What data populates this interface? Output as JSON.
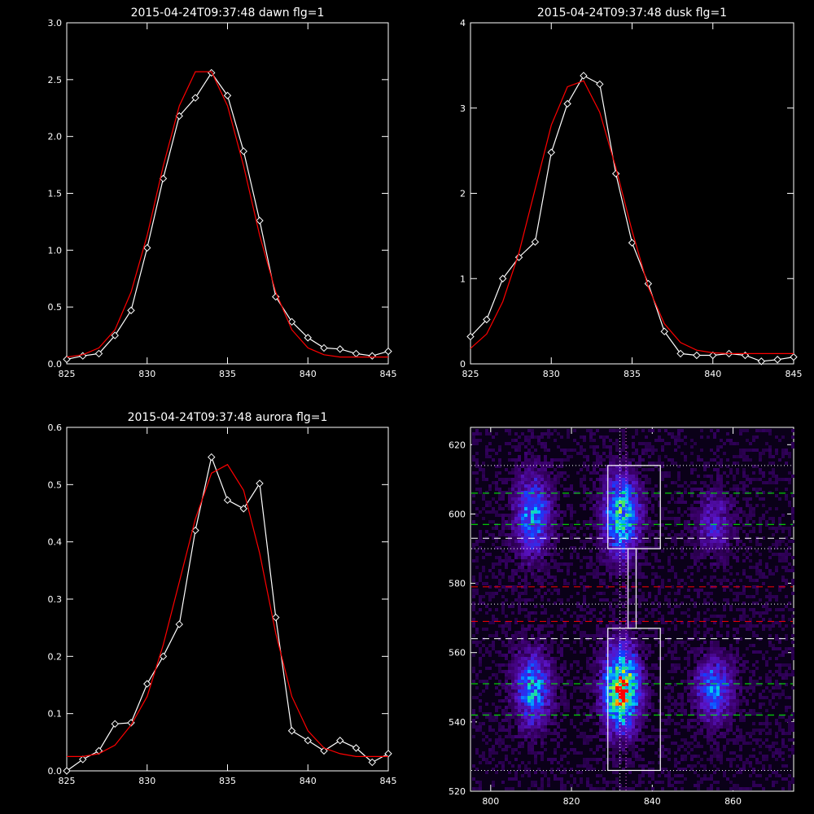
{
  "chart_data": [
    {
      "type": "line",
      "title": "2015-04-24T09:37:48 dawn flg=1",
      "xlim": [
        825,
        845
      ],
      "ylim": [
        0,
        3.0
      ],
      "xticks": [
        "825",
        "830",
        "835",
        "840",
        "845"
      ],
      "yticks": [
        "0.0",
        "0.5",
        "1.0",
        "1.5",
        "2.0",
        "2.5",
        "3.0"
      ],
      "series": [
        {
          "color": "#ffffff",
          "markers": true,
          "x": [
            825,
            826,
            827,
            828,
            829,
            830,
            831,
            832,
            833,
            834,
            835,
            836,
            837,
            838,
            839,
            840,
            841,
            842,
            843,
            844,
            845
          ],
          "y": [
            0.04,
            0.07,
            0.09,
            0.25,
            0.47,
            1.02,
            1.63,
            2.18,
            2.34,
            2.56,
            2.36,
            1.87,
            1.26,
            0.59,
            0.37,
            0.23,
            0.14,
            0.13,
            0.09,
            0.07,
            0.11
          ]
        },
        {
          "color": "#ff0000",
          "markers": false,
          "x": [
            825,
            826,
            827,
            828,
            829,
            830,
            831,
            832,
            833,
            834,
            835,
            836,
            837,
            838,
            839,
            840,
            841,
            842,
            843,
            844,
            845
          ],
          "y": [
            0.06,
            0.08,
            0.14,
            0.3,
            0.63,
            1.13,
            1.74,
            2.27,
            2.57,
            2.57,
            2.27,
            1.74,
            1.13,
            0.63,
            0.3,
            0.14,
            0.08,
            0.06,
            0.06,
            0.06,
            0.06
          ]
        }
      ]
    },
    {
      "type": "line",
      "title": "2015-04-24T09:37:48 dusk flg=1",
      "xlim": [
        825,
        845
      ],
      "ylim": [
        0,
        4
      ],
      "xticks": [
        "825",
        "830",
        "835",
        "840",
        "845"
      ],
      "yticks": [
        "0",
        "1",
        "2",
        "3",
        "4"
      ],
      "series": [
        {
          "color": "#ffffff",
          "markers": true,
          "x": [
            825,
            826,
            827,
            828,
            829,
            830,
            831,
            832,
            833,
            834,
            835,
            836,
            837,
            838,
            839,
            840,
            841,
            842,
            843,
            844,
            845
          ],
          "y": [
            0.32,
            0.52,
            1.0,
            1.25,
            1.43,
            2.48,
            3.05,
            3.38,
            3.28,
            2.23,
            1.42,
            0.94,
            0.38,
            0.12,
            0.1,
            0.1,
            0.12,
            0.1,
            0.03,
            0.05,
            0.08
          ]
        },
        {
          "color": "#ff0000",
          "markers": false,
          "x": [
            825,
            826,
            827,
            828,
            829,
            830,
            831,
            832,
            833,
            834,
            835,
            836,
            837,
            838,
            839,
            840,
            841,
            842,
            843,
            844,
            845
          ],
          "y": [
            0.18,
            0.35,
            0.73,
            1.3,
            2.05,
            2.8,
            3.25,
            3.32,
            2.95,
            2.3,
            1.56,
            0.9,
            0.47,
            0.25,
            0.16,
            0.13,
            0.12,
            0.12,
            0.12,
            0.12,
            0.12
          ]
        }
      ]
    },
    {
      "type": "line",
      "title": "2015-04-24T09:37:48 aurora flg=1",
      "xlim": [
        825,
        845
      ],
      "ylim": [
        0,
        0.6
      ],
      "xticks": [
        "825",
        "830",
        "835",
        "840",
        "845"
      ],
      "yticks": [
        "0.0",
        "0.1",
        "0.2",
        "0.3",
        "0.4",
        "0.5",
        "0.6"
      ],
      "series": [
        {
          "color": "#ffffff",
          "markers": true,
          "x": [
            825,
            826,
            827,
            828,
            829,
            830,
            831,
            832,
            833,
            834,
            835,
            836,
            837,
            838,
            839,
            840,
            841,
            842,
            843,
            844,
            845
          ],
          "y": [
            0.0,
            0.02,
            0.035,
            0.082,
            0.084,
            0.152,
            0.2,
            0.256,
            0.42,
            0.548,
            0.473,
            0.458,
            0.502,
            0.268,
            0.07,
            0.053,
            0.035,
            0.053,
            0.04,
            0.015,
            0.03
          ]
        },
        {
          "color": "#ff0000",
          "markers": false,
          "x": [
            825,
            826,
            827,
            828,
            829,
            830,
            831,
            832,
            833,
            834,
            835,
            836,
            837,
            838,
            839,
            840,
            841,
            842,
            843,
            844,
            845
          ],
          "y": [
            0.025,
            0.025,
            0.03,
            0.045,
            0.08,
            0.13,
            0.22,
            0.33,
            0.44,
            0.52,
            0.535,
            0.49,
            0.38,
            0.24,
            0.13,
            0.07,
            0.04,
            0.03,
            0.025,
            0.025,
            0.025
          ]
        }
      ]
    },
    {
      "type": "heatmap",
      "title": "",
      "xlim": [
        795,
        875
      ],
      "ylim": [
        520,
        625
      ],
      "xticks": [
        "800",
        "820",
        "840",
        "860"
      ],
      "yticks": [
        "520",
        "540",
        "560",
        "580",
        "600",
        "620"
      ],
      "blobs": [
        {
          "x": 810,
          "y": 600,
          "sx": 3,
          "sy": 8,
          "a": 0.45
        },
        {
          "x": 810,
          "y": 550,
          "sx": 3,
          "sy": 7,
          "a": 0.5
        },
        {
          "x": 832,
          "y": 600,
          "sx": 3,
          "sy": 8,
          "a": 0.6
        },
        {
          "x": 832,
          "y": 550,
          "sx": 3,
          "sy": 8,
          "a": 0.85
        },
        {
          "x": 855,
          "y": 598,
          "sx": 3,
          "sy": 6,
          "a": 0.25
        },
        {
          "x": 855,
          "y": 550,
          "sx": 3,
          "sy": 6,
          "a": 0.45
        }
      ],
      "peak": {
        "x": 832,
        "y": 548
      },
      "boxes": [
        {
          "x0": 829,
          "x1": 842,
          "y0": 590,
          "y1": 614
        },
        {
          "x0": 829,
          "x1": 842,
          "y0": 526,
          "y1": 567
        },
        {
          "x0": 834,
          "x1": 836,
          "y0": 567,
          "y1": 590
        }
      ],
      "hlines": [
        {
          "y": 614,
          "color": "#ffffff",
          "style": "dotted"
        },
        {
          "y": 606,
          "color": "#00ff00",
          "style": "dashed"
        },
        {
          "y": 597,
          "color": "#00ff00",
          "style": "dashed"
        },
        {
          "y": 593,
          "color": "#ffffff",
          "style": "dashed"
        },
        {
          "y": 590,
          "color": "#ffffff",
          "style": "dotted"
        },
        {
          "y": 579,
          "color": "#ff0000",
          "style": "dashed"
        },
        {
          "y": 574,
          "color": "#ffffff",
          "style": "dotted"
        },
        {
          "y": 569,
          "color": "#ff0000",
          "style": "dashed"
        },
        {
          "y": 564,
          "color": "#ffffff",
          "style": "dashed"
        },
        {
          "y": 551,
          "color": "#00ff00",
          "style": "dashed"
        },
        {
          "y": 542,
          "color": "#00ff00",
          "style": "dashed"
        },
        {
          "y": 526,
          "color": "#ffffff",
          "style": "dotted"
        }
      ],
      "vlines": [
        {
          "x": 832,
          "color": "#ffffff",
          "style": "dotted"
        },
        {
          "x": 833.5,
          "color": "#ff66ff",
          "style": "dotted"
        }
      ]
    }
  ]
}
